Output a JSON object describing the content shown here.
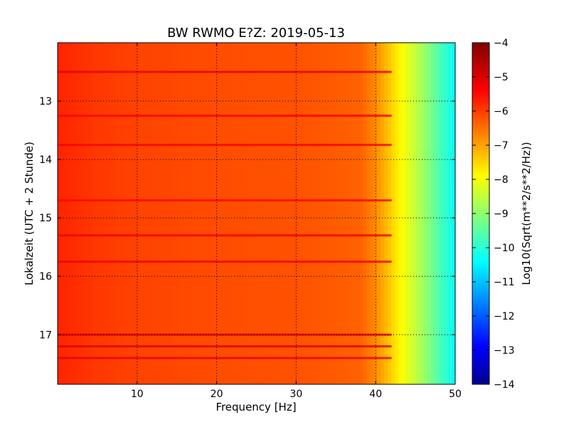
{
  "chart_data": {
    "type": "heatmap",
    "title": "BW RWMO E?Z: 2019-05-13",
    "xlabel": "Frequency [Hz]",
    "ylabel": "Lokalzeit (UTC + 2 Stunde)",
    "xlim": [
      0,
      50
    ],
    "ylim": [
      12.0,
      17.85
    ],
    "x_ticks": [
      10,
      20,
      30,
      40,
      50
    ],
    "x_tick_labels": [
      "10",
      "20",
      "30",
      "40",
      "50"
    ],
    "y_ticks": [
      13,
      14,
      15,
      16,
      17
    ],
    "y_tick_labels": [
      "13",
      "14",
      "15",
      "16",
      "17"
    ],
    "grid": true,
    "colormap": "jet",
    "colorbar": {
      "label": "Log10(Sqrt(m**2/s**2/Hz))",
      "range": [
        -14,
        -4
      ],
      "ticks": [
        -4,
        -5,
        -6,
        -7,
        -8,
        -9,
        -10,
        -11,
        -12,
        -13,
        -14
      ],
      "tick_labels": [
        "−4",
        "−5",
        "−6",
        "−7",
        "−8",
        "−9",
        "−10",
        "−11",
        "−12",
        "−13",
        "−14"
      ]
    },
    "spectrum_profile": {
      "frequency_hz": [
        0,
        5,
        10,
        20,
        30,
        38,
        40,
        42,
        44,
        46,
        48,
        50
      ],
      "log10_amplitude": [
        -5.6,
        -5.8,
        -5.9,
        -6.0,
        -6.05,
        -6.2,
        -6.6,
        -7.3,
        -8.0,
        -8.7,
        -9.5,
        -10.2
      ]
    },
    "bands": [
      {
        "time": 12.5,
        "log10_amplitude": -5.0
      },
      {
        "time": 13.25,
        "log10_amplitude": -5.2
      },
      {
        "time": 13.75,
        "log10_amplitude": -5.2
      },
      {
        "time": 14.7,
        "log10_amplitude": -5.3
      },
      {
        "time": 15.3,
        "log10_amplitude": -5.1
      },
      {
        "time": 15.75,
        "log10_amplitude": -5.1
      },
      {
        "time": 17.0,
        "log10_amplitude": -4.9
      },
      {
        "time": 17.2,
        "log10_amplitude": -4.9
      },
      {
        "time": 17.4,
        "log10_amplitude": -5.0
      }
    ]
  }
}
